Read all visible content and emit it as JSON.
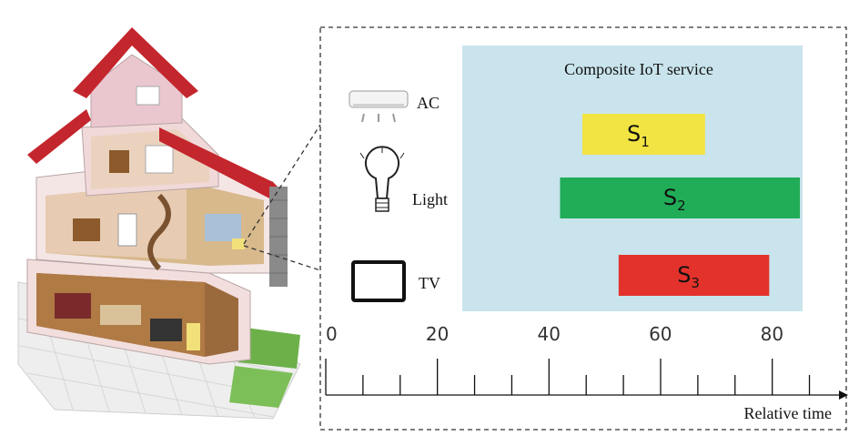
{
  "panel": {
    "title": "Composite IoT service",
    "background_color": "#c9e4ec"
  },
  "devices": [
    {
      "label": "AC",
      "icon": "air-conditioner-icon"
    },
    {
      "label": "Light",
      "icon": "light-bulb-icon"
    },
    {
      "label": "TV",
      "icon": "tv-icon"
    }
  ],
  "services": [
    {
      "label": "S",
      "subscript": "1",
      "start": 46,
      "end": 68,
      "color": "#f2e442"
    },
    {
      "label": "S",
      "subscript": "2",
      "start": 42,
      "end": 85,
      "color": "#21ad57"
    },
    {
      "label": "S",
      "subscript": "3",
      "start": 52.5,
      "end": 79.5,
      "color": "#e3322b"
    }
  ],
  "axis": {
    "label": "Relative time",
    "tick_labels": [
      "0",
      "20",
      "40",
      "60",
      "80"
    ],
    "major_ticks": [
      0,
      20,
      40,
      60,
      80
    ],
    "minor_step": 6.67,
    "range": [
      0,
      92
    ]
  },
  "illustration": {
    "icon": "house-cutaway-icon"
  }
}
